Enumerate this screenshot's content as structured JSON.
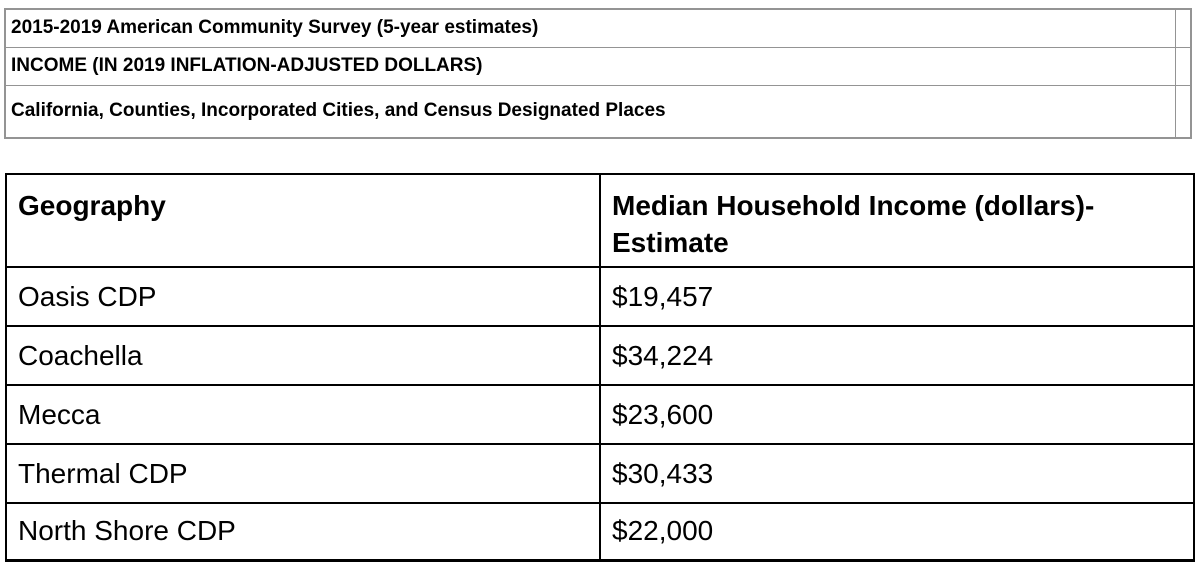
{
  "colors": {
    "page_background": "#ffffff",
    "header_block_border": "#949494",
    "income_table_border": "#000000",
    "text": "#000000"
  },
  "header_block": {
    "rows": [
      "2015-2019 American Community Survey (5-year estimates)",
      "INCOME (IN 2019 INFLATION-ADJUSTED DOLLARS)",
      "California, Counties, Incorporated Cities, and Census Designated Places"
    ]
  },
  "income_table": {
    "columns": [
      "Geography",
      "Median Household Income (dollars)-Estimate"
    ],
    "rows": [
      {
        "geography": "Oasis CDP",
        "income": "$19,457"
      },
      {
        "geography": "Coachella",
        "income": "$34,224"
      },
      {
        "geography": "Mecca",
        "income": "$23,600"
      },
      {
        "geography": "Thermal CDP",
        "income": "$30,433"
      },
      {
        "geography": "North Shore CDP",
        "income": "$22,000"
      }
    ]
  }
}
